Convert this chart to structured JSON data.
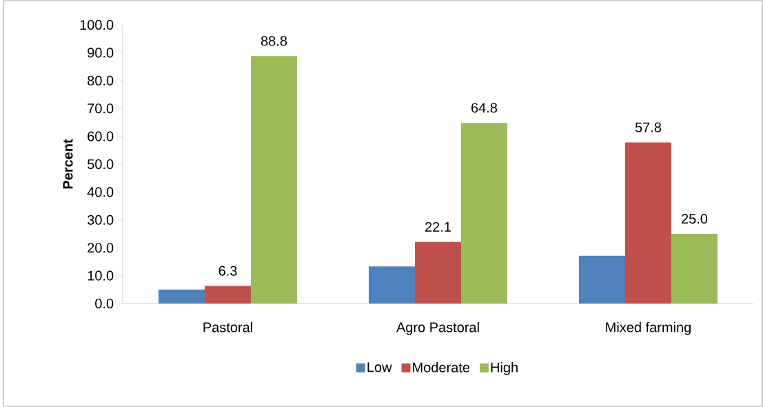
{
  "chart_data": {
    "type": "bar",
    "ylabel": "**Percent**",
    "categories": [
      "Pastoral",
      "Agro Pastoral",
      "Mixed farming"
    ],
    "series": [
      {
        "name": "Low",
        "color": "#4f81bd",
        "values": [
          5.0,
          13.3,
          17.2
        ]
      },
      {
        "name": "Moderate",
        "color": "#c0504d",
        "values": [
          6.3,
          22.1,
          57.8
        ],
        "value_labels": [
          "6.3",
          "22.1",
          "57.8"
        ]
      },
      {
        "name": "High",
        "color": "#9bbb59",
        "values": [
          88.8,
          64.8,
          25.0
        ],
        "value_labels": [
          "88.8",
          "64.8",
          "25.0"
        ]
      }
    ],
    "ylim": [
      0,
      100
    ],
    "yticks": [
      {
        "value": 0,
        "label": "0.0"
      },
      {
        "value": 10,
        "label": "10.0"
      },
      {
        "value": 20,
        "label": "20.0"
      },
      {
        "value": 30,
        "label": "30.0"
      },
      {
        "value": 40,
        "label": "40.0"
      },
      {
        "value": 50,
        "label": "50.0"
      },
      {
        "value": 60,
        "label": "60.0"
      },
      {
        "value": 70,
        "label": "70.0"
      },
      {
        "value": 80,
        "label": "80.0"
      },
      {
        "value": 90,
        "label": "90.0"
      },
      {
        "value": 100,
        "label": "100.0"
      }
    ],
    "grid": false,
    "legend": "bottom"
  }
}
